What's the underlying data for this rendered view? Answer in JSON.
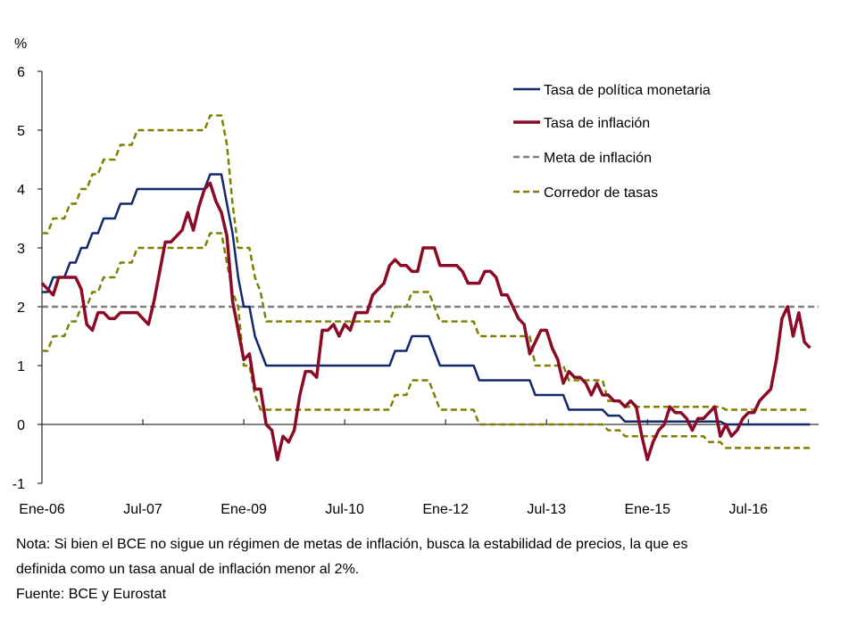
{
  "chart_data": {
    "type": "line",
    "title": "",
    "ylabel": "%",
    "xlabel": "",
    "ylim": [
      -1,
      6
    ],
    "yticks": [
      "6",
      "5",
      "4",
      "3",
      "2",
      "1",
      "0",
      "-1"
    ],
    "xtick_labels": [
      "Ene-06",
      "Jul-07",
      "Ene-09",
      "Jul-10",
      "Ene-12",
      "Jul-13",
      "Ene-15",
      "Jul-16"
    ],
    "x_start": "2006-01",
    "x_end": "2017-06",
    "grid": false,
    "legend_position": "top-right",
    "series": [
      {
        "name": "Tasa de política monetaria",
        "color": "#13296b",
        "style": "solid",
        "steps": [
          [
            "2006-01",
            2.25
          ],
          [
            "2006-03",
            2.5
          ],
          [
            "2006-06",
            2.75
          ],
          [
            "2006-08",
            3.0
          ],
          [
            "2006-10",
            3.25
          ],
          [
            "2006-12",
            3.5
          ],
          [
            "2007-03",
            3.75
          ],
          [
            "2007-06",
            4.0
          ],
          [
            "2008-07",
            4.25
          ],
          [
            "2008-10",
            3.75
          ],
          [
            "2008-11",
            3.25
          ],
          [
            "2008-12",
            2.5
          ],
          [
            "2009-01",
            2.0
          ],
          [
            "2009-03",
            1.5
          ],
          [
            "2009-04",
            1.25
          ],
          [
            "2009-05",
            1.0
          ],
          [
            "2011-04",
            1.25
          ],
          [
            "2011-07",
            1.5
          ],
          [
            "2011-11",
            1.25
          ],
          [
            "2011-12",
            1.0
          ],
          [
            "2012-07",
            0.75
          ],
          [
            "2013-05",
            0.5
          ],
          [
            "2013-11",
            0.25
          ],
          [
            "2014-06",
            0.15
          ],
          [
            "2014-09",
            0.05
          ],
          [
            "2016-03",
            0.0
          ]
        ]
      },
      {
        "name": "Tasa de inflación",
        "color": "#8b0a26",
        "style": "solid",
        "values": [
          2.4,
          2.3,
          2.2,
          2.5,
          2.5,
          2.5,
          2.5,
          2.3,
          1.7,
          1.6,
          1.9,
          1.9,
          1.8,
          1.8,
          1.9,
          1.9,
          1.9,
          1.9,
          1.8,
          1.7,
          2.1,
          2.6,
          3.1,
          3.1,
          3.2,
          3.3,
          3.6,
          3.3,
          3.7,
          4.0,
          4.1,
          3.8,
          3.6,
          3.2,
          2.1,
          1.6,
          1.1,
          1.2,
          0.6,
          0.6,
          0.0,
          -0.1,
          -0.6,
          -0.2,
          -0.3,
          -0.1,
          0.5,
          0.9,
          0.9,
          0.8,
          1.6,
          1.6,
          1.7,
          1.5,
          1.7,
          1.6,
          1.9,
          1.9,
          1.9,
          2.2,
          2.3,
          2.4,
          2.7,
          2.8,
          2.7,
          2.7,
          2.6,
          2.6,
          3.0,
          3.0,
          3.0,
          2.7,
          2.7,
          2.7,
          2.7,
          2.6,
          2.4,
          2.4,
          2.4,
          2.6,
          2.6,
          2.5,
          2.2,
          2.2,
          2.0,
          1.8,
          1.7,
          1.2,
          1.4,
          1.6,
          1.6,
          1.3,
          1.1,
          0.7,
          0.9,
          0.8,
          0.8,
          0.7,
          0.5,
          0.7,
          0.5,
          0.5,
          0.4,
          0.4,
          0.3,
          0.4,
          0.3,
          -0.2,
          -0.6,
          -0.3,
          -0.1,
          0.0,
          0.3,
          0.2,
          0.2,
          0.1,
          -0.1,
          0.1,
          0.1,
          0.2,
          0.3,
          -0.2,
          0.0,
          -0.2,
          -0.1,
          0.1,
          0.2,
          0.2,
          0.4,
          0.5,
          0.6,
          1.1,
          1.8,
          2.0,
          1.5,
          1.9,
          1.4,
          1.3
        ]
      },
      {
        "name": "Meta de inflación",
        "color": "#808080",
        "style": "dashed",
        "steps": [
          [
            "2006-01",
            2.0
          ]
        ]
      },
      {
        "name": "Corredor de tasas",
        "color": "#808000",
        "style": "dashed",
        "upper_steps": [
          [
            "2006-01",
            3.25
          ],
          [
            "2006-03",
            3.5
          ],
          [
            "2006-06",
            3.75
          ],
          [
            "2006-08",
            4.0
          ],
          [
            "2006-10",
            4.25
          ],
          [
            "2006-12",
            4.5
          ],
          [
            "2007-03",
            4.75
          ],
          [
            "2007-06",
            5.0
          ],
          [
            "2008-07",
            5.25
          ],
          [
            "2008-10",
            4.75
          ],
          [
            "2008-11",
            3.75
          ],
          [
            "2008-12",
            3.0
          ],
          [
            "2009-03",
            2.5
          ],
          [
            "2009-04",
            2.25
          ],
          [
            "2009-05",
            1.75
          ],
          [
            "2011-04",
            2.0
          ],
          [
            "2011-07",
            2.25
          ],
          [
            "2011-11",
            2.0
          ],
          [
            "2011-12",
            1.75
          ],
          [
            "2012-07",
            1.5
          ],
          [
            "2013-05",
            1.0
          ],
          [
            "2013-11",
            0.75
          ],
          [
            "2014-06",
            0.4
          ],
          [
            "2014-09",
            0.3
          ],
          [
            "2016-03",
            0.25
          ]
        ],
        "lower_steps": [
          [
            "2006-01",
            1.25
          ],
          [
            "2006-03",
            1.5
          ],
          [
            "2006-06",
            1.75
          ],
          [
            "2006-08",
            2.0
          ],
          [
            "2006-10",
            2.25
          ],
          [
            "2006-12",
            2.5
          ],
          [
            "2007-03",
            2.75
          ],
          [
            "2007-06",
            3.0
          ],
          [
            "2008-07",
            3.25
          ],
          [
            "2008-10",
            2.75
          ],
          [
            "2008-11",
            2.25
          ],
          [
            "2008-12",
            2.0
          ],
          [
            "2009-01",
            1.0
          ],
          [
            "2009-03",
            0.5
          ],
          [
            "2009-04",
            0.25
          ],
          [
            "2011-04",
            0.5
          ],
          [
            "2011-07",
            0.75
          ],
          [
            "2011-11",
            0.5
          ],
          [
            "2011-12",
            0.25
          ],
          [
            "2012-07",
            0.0
          ],
          [
            "2014-06",
            -0.1
          ],
          [
            "2014-09",
            -0.2
          ],
          [
            "2015-12",
            -0.3
          ],
          [
            "2016-03",
            -0.4
          ]
        ]
      }
    ]
  },
  "notes": {
    "line1": "Nota: Si bien el BCE no sigue un régimen de metas de inflación, busca la estabilidad de precios, la que es",
    "line2": "definida como un tasa anual de inflación menor al 2%.",
    "source": "Fuente: BCE y Eurostat"
  }
}
